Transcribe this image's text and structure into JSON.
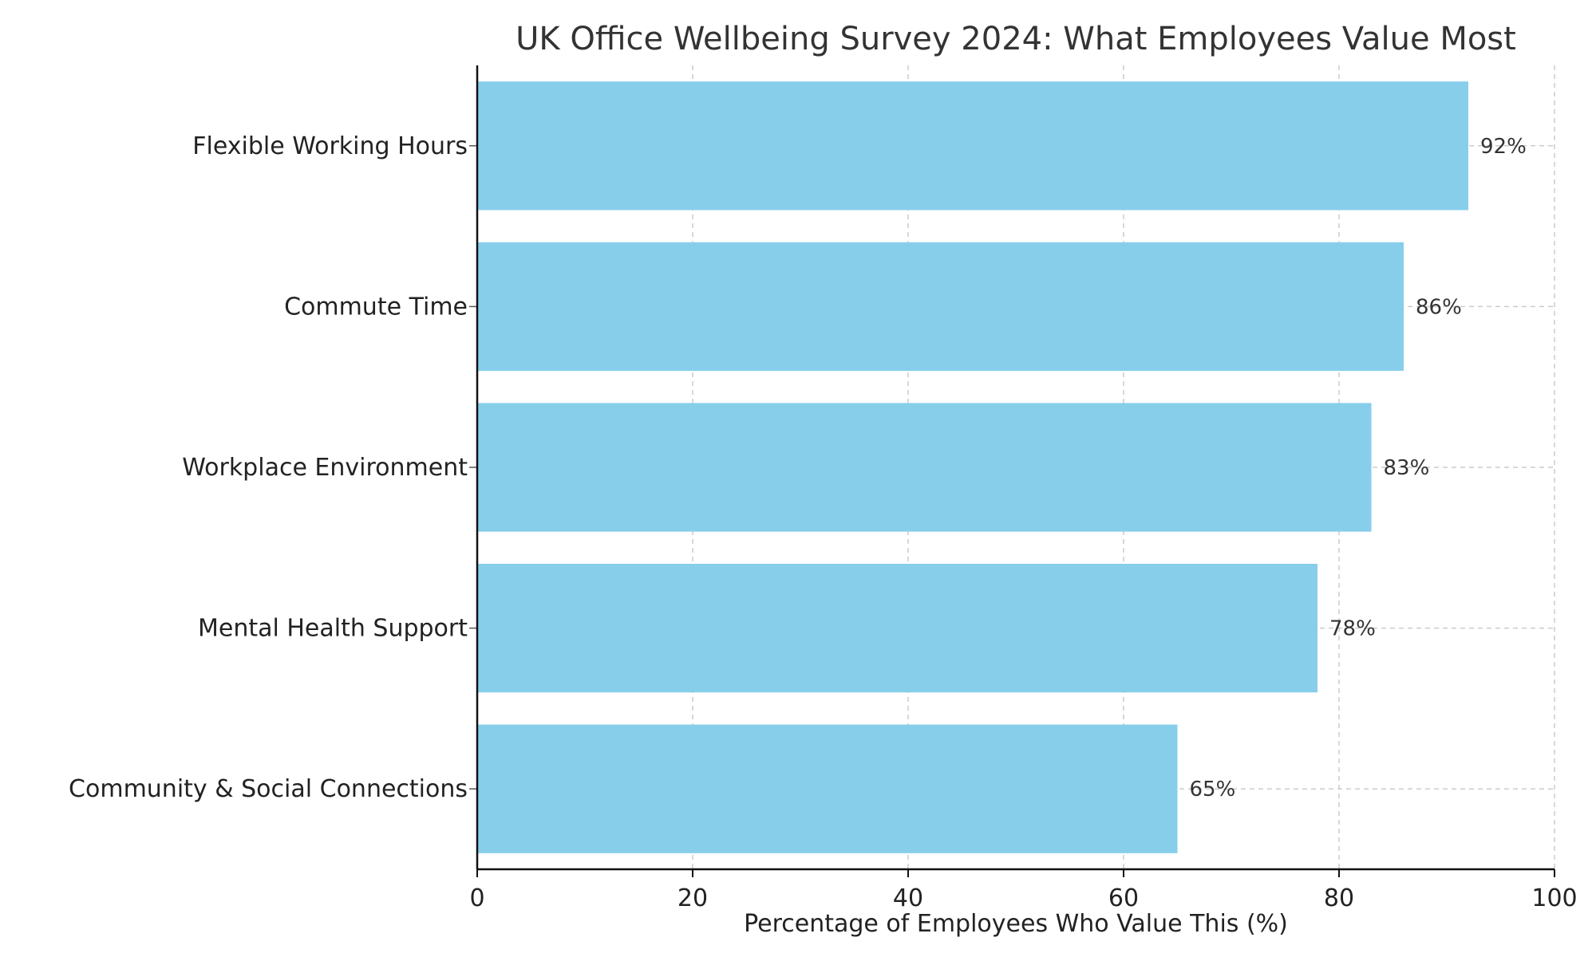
{
  "chart_data": {
    "type": "bar",
    "orientation": "horizontal",
    "title": "UK Office Wellbeing Survey 2024: What Employees Value Most",
    "xlabel": "Percentage of Employees Who Value This (%)",
    "ylabel": "",
    "categories": [
      "Flexible Working Hours",
      "Commute Time",
      "Workplace Environment",
      "Mental Health Support",
      "Community & Social Connections"
    ],
    "values": [
      92,
      86,
      83,
      78,
      65
    ],
    "value_labels": [
      "92%",
      "86%",
      "83%",
      "78%",
      "65%"
    ],
    "xlim": [
      0,
      100
    ],
    "xticks": [
      0,
      20,
      40,
      60,
      80,
      100
    ],
    "xtick_labels": [
      "0",
      "20",
      "40",
      "60",
      "80",
      "100"
    ],
    "grid": true,
    "legend": "none",
    "bar_color": "#87CEEB"
  }
}
